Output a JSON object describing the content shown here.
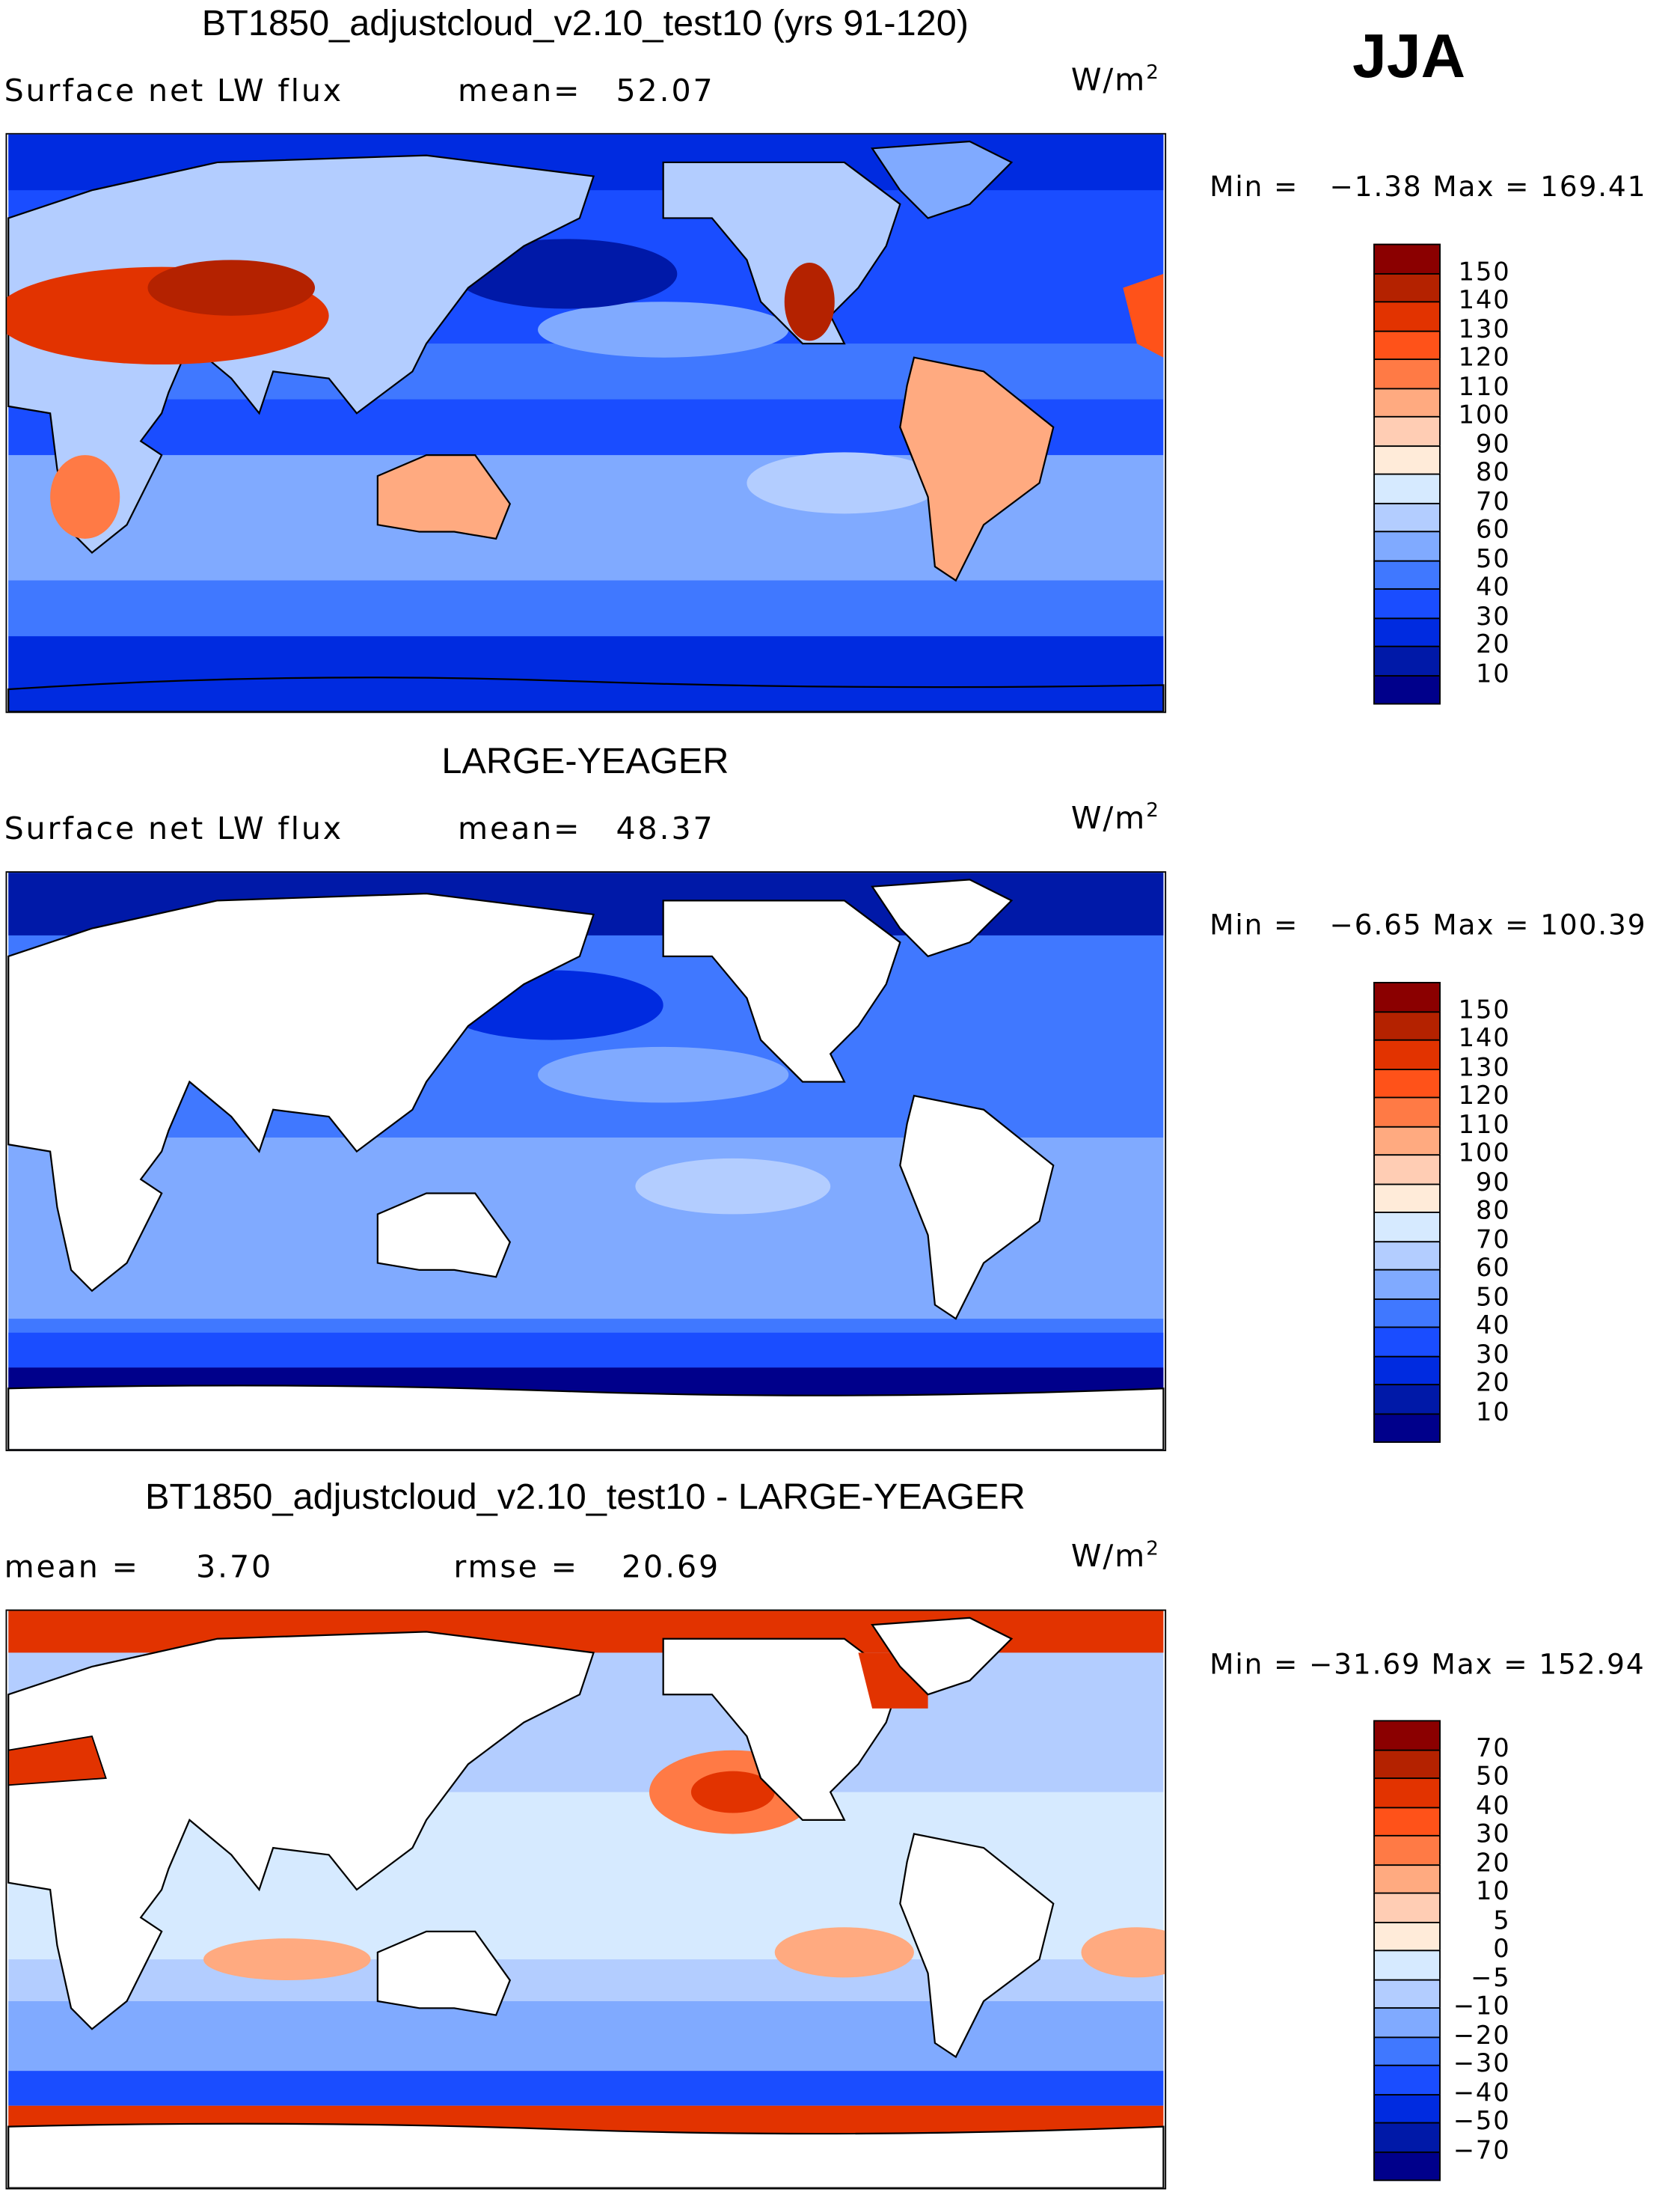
{
  "season": "JJA",
  "units_base": "W/m",
  "units_exp": "2",
  "chart_data": [
    {
      "type": "heatmap",
      "title": "BT1850_adjustcloud_v2.10_test10 (yrs 91-120)",
      "variable": "Surface net LW flux",
      "stat1_label": "mean=",
      "stat1_value": "52.07",
      "min_label": "Min =",
      "min_value": "−1.38",
      "max_label": "Max =",
      "max_value": "169.41",
      "levels": [
        "150",
        "140",
        "130",
        "120",
        "110",
        "100",
        "90",
        "80",
        "70",
        "60",
        "50",
        "40",
        "30",
        "20",
        "10"
      ],
      "colors": [
        "#8b0000",
        "#b42200",
        "#e23300",
        "#ff5219",
        "#ff7a45",
        "#ffaa80",
        "#ffcdb4",
        "#ffebd9",
        "#d6eaff",
        "#b3cdff",
        "#80aaff",
        "#4078ff",
        "#1a4dff",
        "#002be0",
        "#0019a8",
        "#00008b"
      ]
    },
    {
      "type": "heatmap",
      "title": "LARGE-YEAGER",
      "variable": "Surface net LW flux",
      "stat1_label": "mean=",
      "stat1_value": "48.37",
      "min_label": "Min =",
      "min_value": "−6.65",
      "max_label": "Max =",
      "max_value": "100.39",
      "levels": [
        "150",
        "140",
        "130",
        "120",
        "110",
        "100",
        "90",
        "80",
        "70",
        "60",
        "50",
        "40",
        "30",
        "20",
        "10"
      ],
      "colors": [
        "#8b0000",
        "#b42200",
        "#e23300",
        "#ff5219",
        "#ff7a45",
        "#ffaa80",
        "#ffcdb4",
        "#ffebd9",
        "#d6eaff",
        "#b3cdff",
        "#80aaff",
        "#4078ff",
        "#1a4dff",
        "#002be0",
        "#0019a8",
        "#00008b"
      ]
    },
    {
      "type": "heatmap",
      "title": "BT1850_adjustcloud_v2.10_test10 - LARGE-YEAGER",
      "stat1_label": "mean =",
      "stat1_value": "3.70",
      "stat2_label": "rmse =",
      "stat2_value": "20.69",
      "min_label": "Min =",
      "min_value": "−31.69",
      "max_label": "Max =",
      "max_value": "152.94",
      "levels": [
        "70",
        "50",
        "40",
        "30",
        "20",
        "10",
        "5",
        "0",
        "−5",
        "−10",
        "−20",
        "−30",
        "−40",
        "−50",
        "−70"
      ],
      "colors": [
        "#8b0000",
        "#b42200",
        "#e23300",
        "#ff5219",
        "#ff7a45",
        "#ffaa80",
        "#ffcdb4",
        "#ffebd9",
        "#d6eaff",
        "#b3cdff",
        "#80aaff",
        "#4078ff",
        "#1a4dff",
        "#002be0",
        "#0019a8",
        "#00008b"
      ]
    }
  ]
}
